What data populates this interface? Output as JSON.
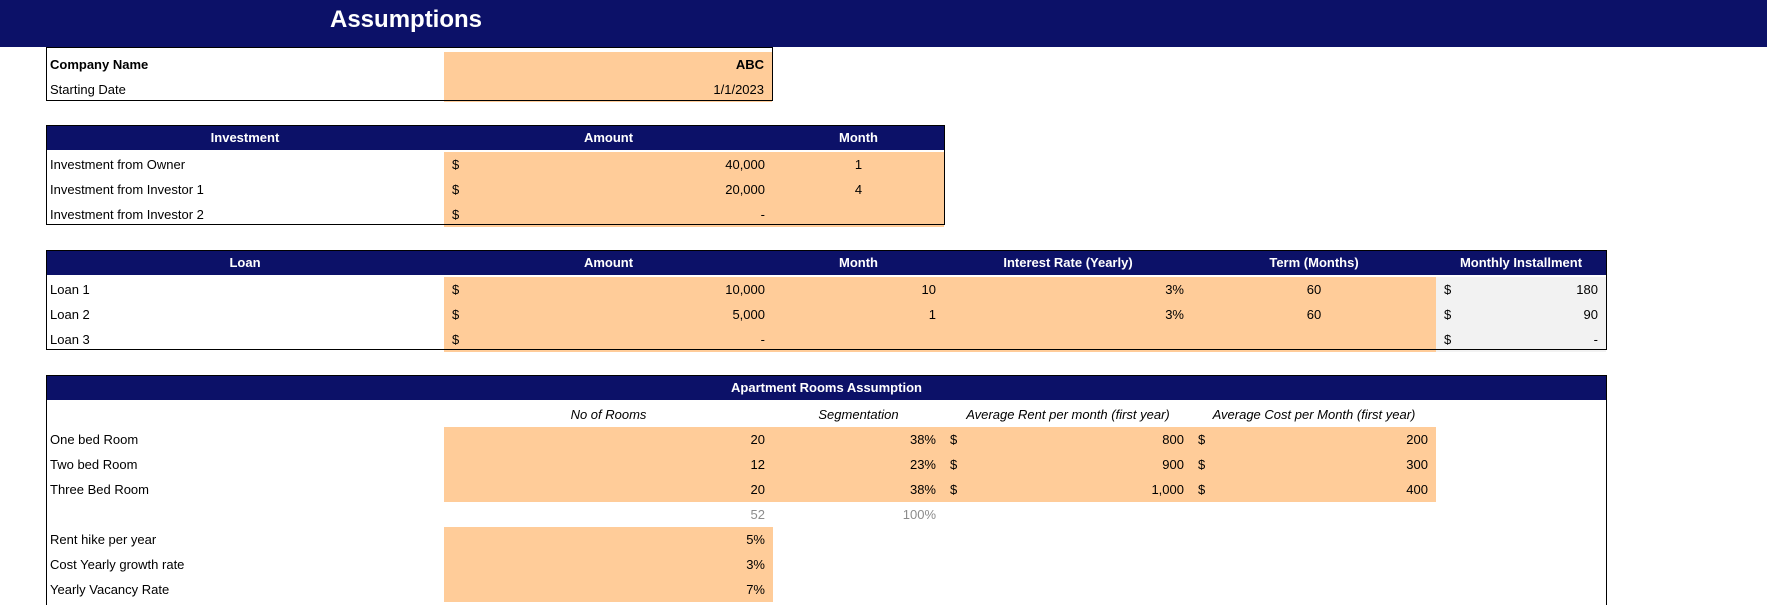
{
  "page": {
    "title": "Assumptions"
  },
  "company": {
    "name_label": "Company Name",
    "name_value": "ABC",
    "date_label": "Starting Date",
    "date_value": "1/1/2023"
  },
  "investment": {
    "headers": {
      "name": "Investment",
      "amount": "Amount",
      "month": "Month"
    },
    "rows": [
      {
        "name": "Investment from Owner",
        "currency": "$",
        "amount": "40,000",
        "month": "1"
      },
      {
        "name": "Investment from Investor 1",
        "currency": "$",
        "amount": "20,000",
        "month": "4"
      },
      {
        "name": "Investment from Investor 2",
        "currency": "$",
        "amount": "-",
        "month": ""
      }
    ]
  },
  "loans": {
    "headers": {
      "name": "Loan",
      "amount": "Amount",
      "month": "Month",
      "rate": "Interest Rate (Yearly)",
      "term": "Term (Months)",
      "installment": "Monthly Installment"
    },
    "rows": [
      {
        "name": "Loan 1",
        "currency": "$",
        "amount": "10,000",
        "month": "10",
        "rate": "3%",
        "term": "60",
        "inst_currency": "$",
        "installment": "180"
      },
      {
        "name": "Loan 2",
        "currency": "$",
        "amount": "5,000",
        "month": "1",
        "rate": "3%",
        "term": "60",
        "inst_currency": "$",
        "installment": "90"
      },
      {
        "name": "Loan 3",
        "currency": "$",
        "amount": "-",
        "month": "",
        "rate": "",
        "term": "",
        "inst_currency": "$",
        "installment": "-"
      }
    ]
  },
  "apartments": {
    "title": "Apartment Rooms Assumption",
    "headers": {
      "rooms": "No of Rooms",
      "segmentation": "Segmentation",
      "rent": "Average Rent per month (first year)",
      "cost": "Average Cost per Month (first year)"
    },
    "rows": [
      {
        "name": "One bed Room",
        "rooms": "20",
        "segmentation": "38%",
        "rent_currency": "$",
        "rent": "800",
        "cost_currency": "$",
        "cost": "200"
      },
      {
        "name": "Two bed Room",
        "rooms": "12",
        "segmentation": "23%",
        "rent_currency": "$",
        "rent": "900",
        "cost_currency": "$",
        "cost": "300"
      },
      {
        "name": "Three Bed Room",
        "rooms": "20",
        "segmentation": "38%",
        "rent_currency": "$",
        "rent": "1,000",
        "cost_currency": "$",
        "cost": "400"
      }
    ],
    "totals": {
      "rooms": "52",
      "segmentation": "100%"
    },
    "growth": [
      {
        "name": "Rent hike per year",
        "value": "5%"
      },
      {
        "name": "Cost Yearly growth rate",
        "value": "3%"
      },
      {
        "name": "Yearly Vacancy Rate",
        "value": "7%"
      }
    ]
  },
  "colors": {
    "header_navy": "#0c1168",
    "input_orange": "#ffcc99",
    "calc_grey": "#f2f2f2"
  }
}
